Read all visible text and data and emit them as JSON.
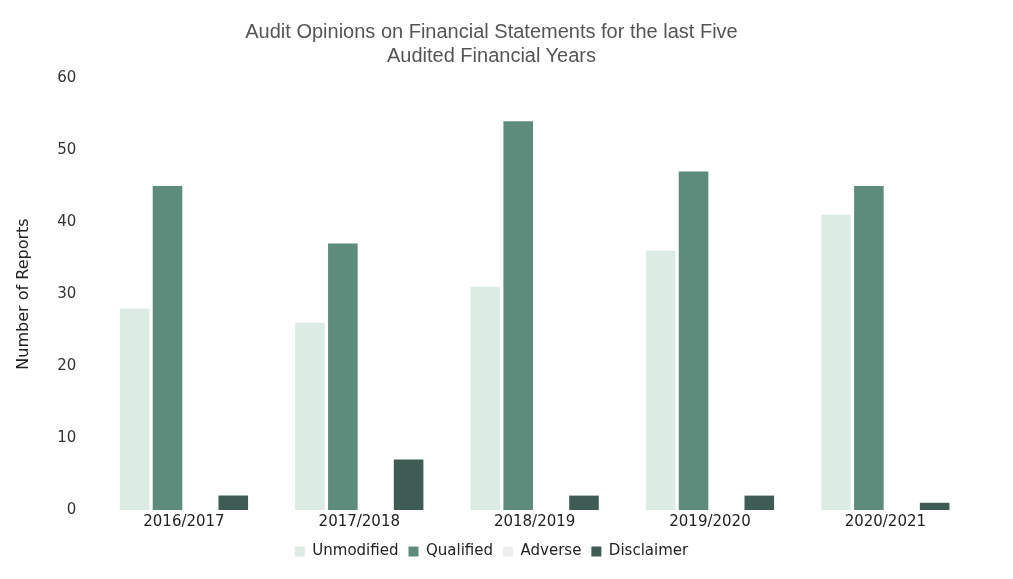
{
  "chart_data": {
    "type": "bar",
    "title": "Audit Opinions on Financial Statements for the last Five Audited Financial Years",
    "ylabel": "Number of Reports",
    "categories": [
      "2016/2017",
      "2017/2018",
      "2018/2019",
      "2019/2020",
      "2020/2021"
    ],
    "series": [
      {
        "name": "Unmodified",
        "color": "#dcece4",
        "values": [
          28,
          26,
          31,
          36,
          41
        ]
      },
      {
        "name": "Qualified",
        "color": "#5e8c7c",
        "values": [
          45,
          37,
          54,
          47,
          45
        ]
      },
      {
        "name": "Adverse",
        "color": "#eeeeee",
        "values": [
          0,
          0,
          0,
          0,
          0
        ]
      },
      {
        "name": "Disclaimer",
        "color": "#3e5c54",
        "values": [
          2,
          7,
          2,
          2,
          1
        ]
      }
    ],
    "ylim": [
      0,
      60
    ],
    "yticks": [
      0,
      10,
      20,
      30,
      40,
      50,
      60
    ],
    "grid": false,
    "legend": "bottom"
  }
}
